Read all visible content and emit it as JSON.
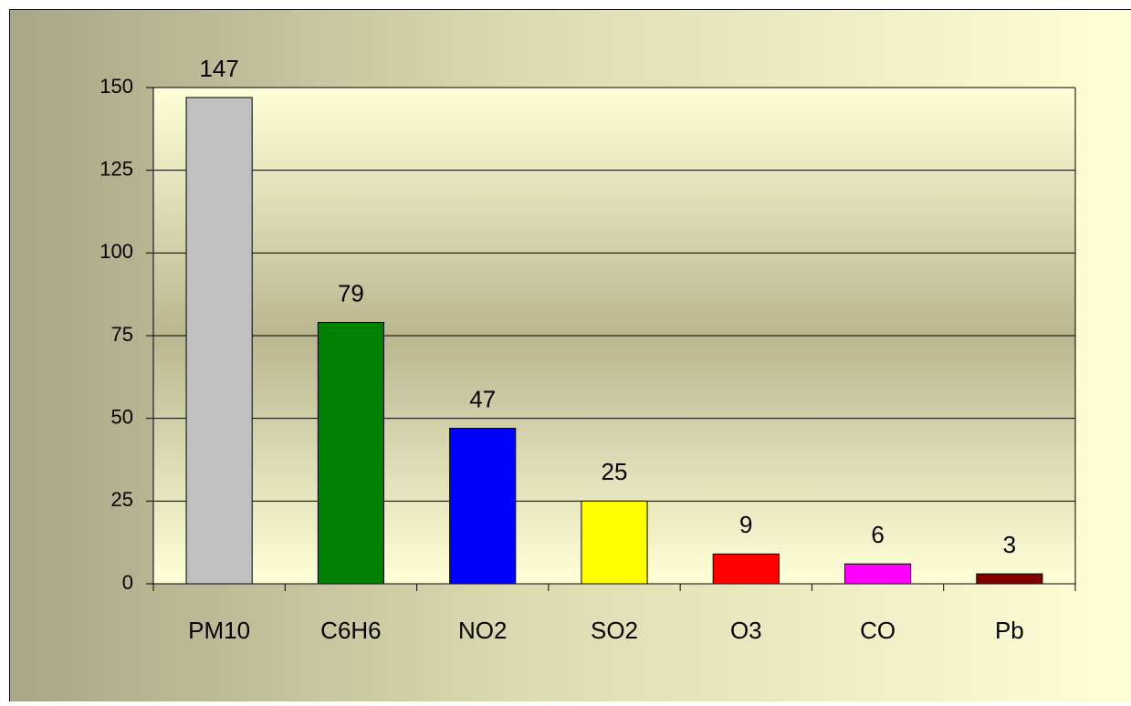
{
  "chart_data": {
    "type": "bar",
    "categories": [
      "PM10",
      "C6H6",
      "NO2",
      "SO2",
      "O3",
      "CO",
      "Pb"
    ],
    "values": [
      147,
      79,
      47,
      25,
      9,
      6,
      3
    ],
    "colors": [
      "#c0c0c0",
      "#008000",
      "#0000ff",
      "#ffff00",
      "#ff0000",
      "#ff00ff",
      "#800000"
    ],
    "ylim": [
      0,
      150
    ],
    "yticks": [
      0,
      25,
      50,
      75,
      100,
      125,
      150
    ],
    "grid": true
  }
}
